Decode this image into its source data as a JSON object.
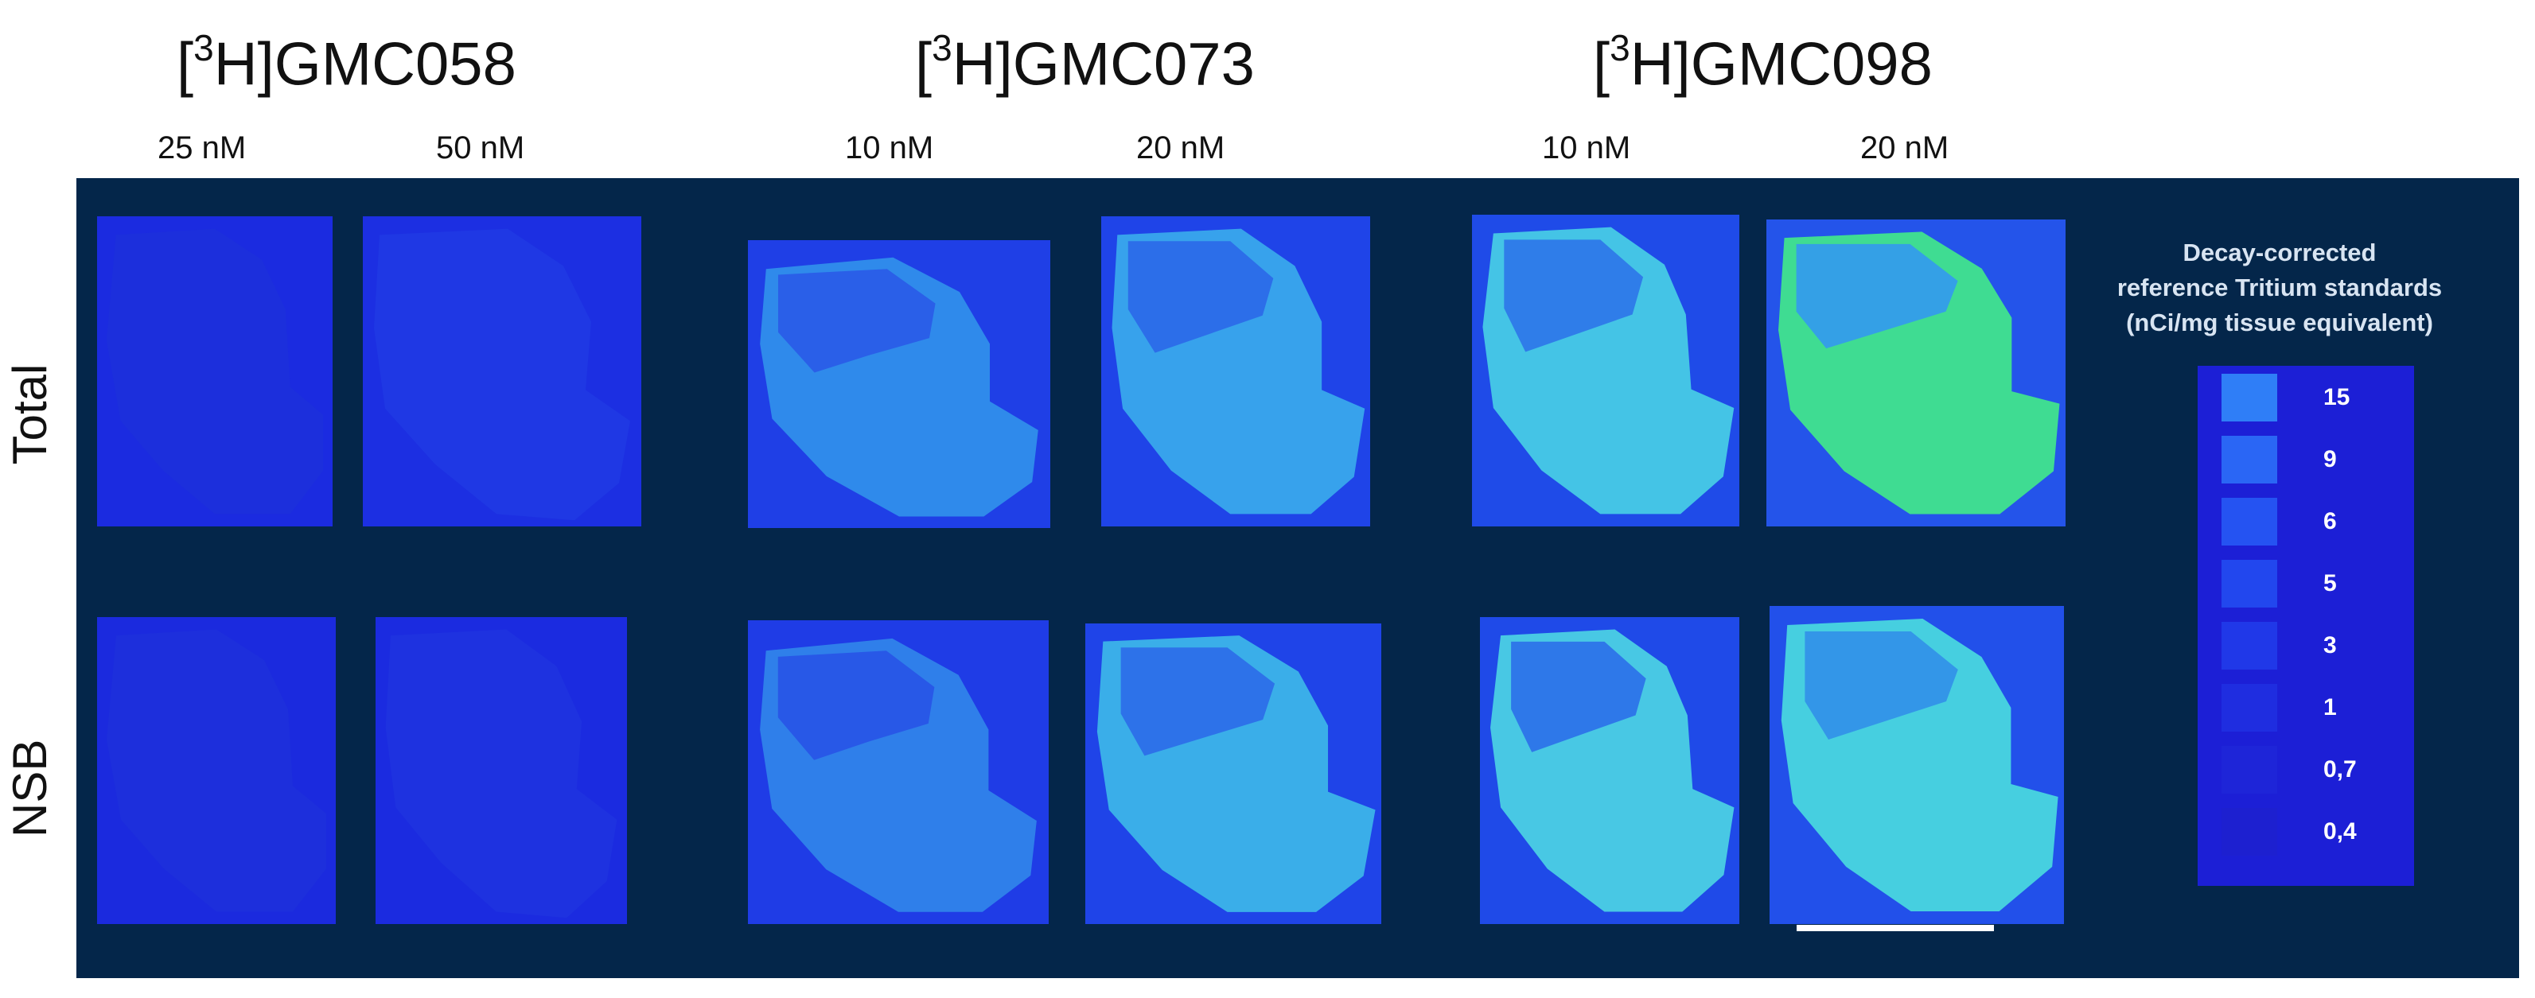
{
  "compounds": [
    {
      "prefix": "[",
      "superscript": "3",
      "suffix": "H]GMC058"
    },
    {
      "prefix": "[",
      "superscript": "3",
      "suffix": "H]GMC073"
    },
    {
      "prefix": "[",
      "superscript": "3",
      "suffix": "H]GMC098"
    }
  ],
  "concentrations": [
    "25 nM",
    "50 nM",
    "10 nM",
    "20 nM",
    "10 nM",
    "20 nM"
  ],
  "rows": [
    "Total",
    "NSB"
  ],
  "legend": {
    "title_lines": [
      "Decay-corrected",
      "reference Tritium standards",
      "(nCi/mg tissue equivalent)"
    ],
    "standards": [
      {
        "label": "15",
        "color": "#2f7ef7"
      },
      {
        "label": "9",
        "color": "#2a66f5"
      },
      {
        "label": "6",
        "color": "#2553f2"
      },
      {
        "label": "5",
        "color": "#2247ee"
      },
      {
        "label": "3",
        "color": "#2038e8"
      },
      {
        "label": "1",
        "color": "#1f2de0"
      },
      {
        "label": "0,7",
        "color": "#1e25d8"
      },
      {
        "label": "0,4",
        "color": "#1d20d0"
      }
    ]
  },
  "colors": {
    "panel_background": "#04264a",
    "section_low": "#1b2bdd",
    "section_mid": "#2f8df0",
    "section_high": "#32e58a"
  }
}
